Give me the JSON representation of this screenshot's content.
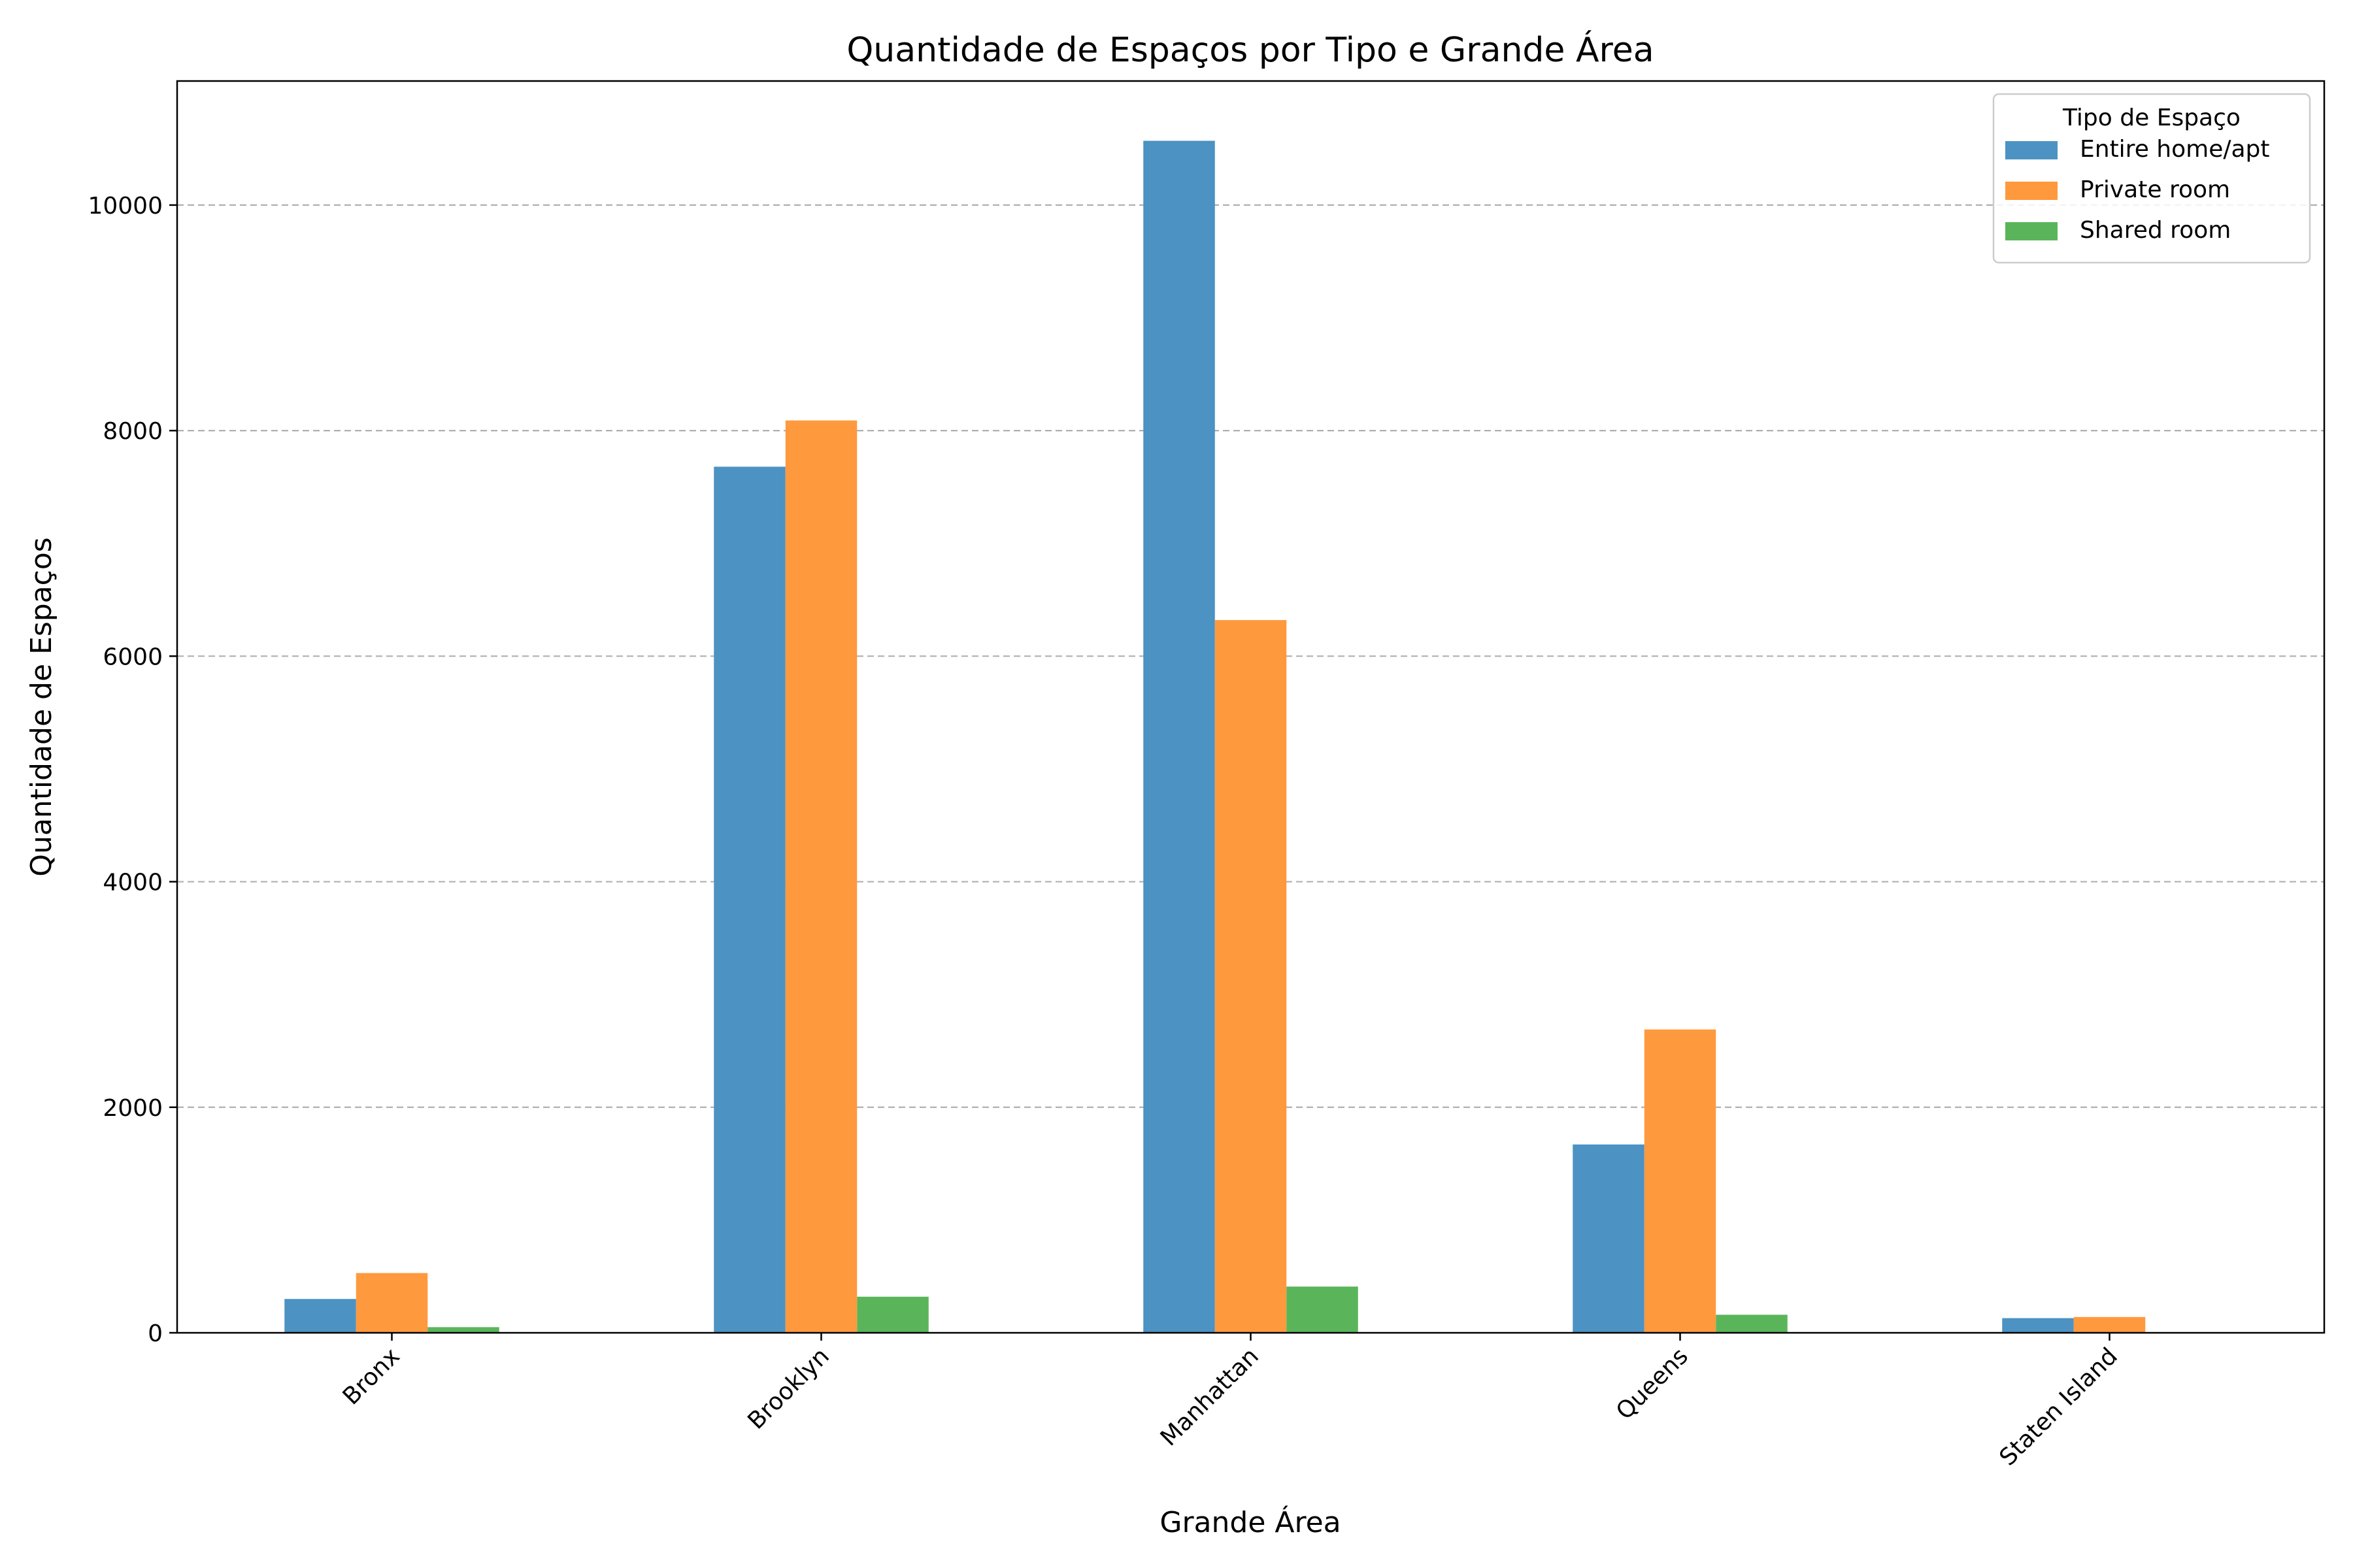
{
  "chart_data": {
    "type": "bar",
    "title": "Quantidade de Espaços por Tipo e Grande Área",
    "xlabel": "Grande Área",
    "ylabel": "Quantidade de Espaços",
    "categories": [
      "Bronx",
      "Brooklyn",
      "Manhattan",
      "Queens",
      "Staten Island"
    ],
    "series": [
      {
        "name": "Entire home/apt",
        "color": "#4c92c3",
        "values": [
          300,
          7680,
          10570,
          1670,
          130
        ]
      },
      {
        "name": "Private room",
        "color": "#ff993e",
        "values": [
          530,
          8090,
          6320,
          2690,
          140
        ]
      },
      {
        "name": "Shared room",
        "color": "#5ab55a",
        "values": [
          50,
          320,
          410,
          160,
          0
        ]
      }
    ],
    "ylim": [
      0,
      11100
    ],
    "yticks": [
      0,
      2000,
      4000,
      6000,
      8000,
      10000
    ],
    "grid": "y-dashed",
    "legend": {
      "title": "Tipo de Espaço",
      "placement": "top-right"
    }
  }
}
